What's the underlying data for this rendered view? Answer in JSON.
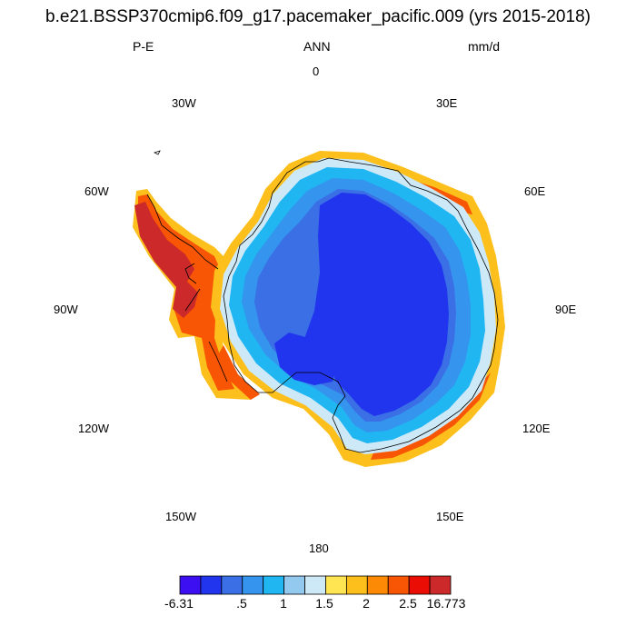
{
  "title": "b.e21.BSSP370cmip6.f09_g17.pacemaker_pacific.009 (yrs 2015-2018)",
  "left_label": "P-E",
  "center_label": "ANN",
  "right_label": "mm/d",
  "longitudes": [
    "0",
    "30E",
    "60E",
    "90E",
    "120E",
    "150E",
    "180",
    "150W",
    "120W",
    "90W",
    "60W",
    "30W"
  ],
  "colorbar": {
    "colors": [
      "#3b0ff2",
      "#2134ee",
      "#3a6fe6",
      "#3594ee",
      "#1fb6f2",
      "#94c9ef",
      "#cde9f8",
      "#ffe552",
      "#fcbf1c",
      "#fc8a04",
      "#f85604",
      "#ea0d04",
      "#cc2a2a"
    ],
    "labels": [
      "-6.31",
      ".5",
      "1",
      "1.5",
      "2",
      "2.5",
      "16.773"
    ]
  },
  "palette": {
    "interior": "#2134ee",
    "ring1": "#3a6fe6",
    "ring2": "#3594ee",
    "ring3": "#1fb6f2",
    "ring4": "#cde9f8",
    "coast_warm": "#fcbf1c",
    "coast_hot": "#f85604",
    "coast_max": "#cc2a2a"
  }
}
